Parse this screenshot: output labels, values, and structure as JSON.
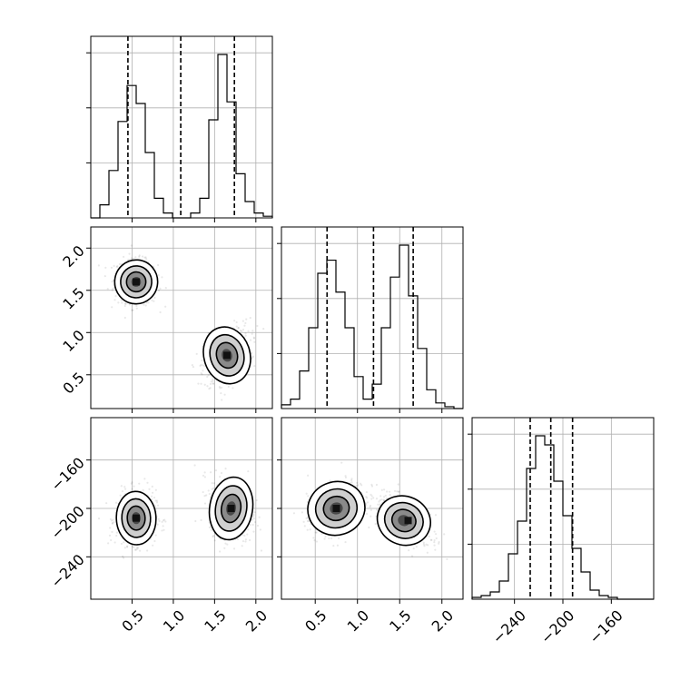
{
  "chart_data": {
    "type": "corner",
    "parameters": [
      "",
      "",
      ""
    ],
    "grid": true,
    "colors": {
      "line": "#000000",
      "grid": "#b0b0b0",
      "background": "#ffffff"
    },
    "ranges": {
      "p0": [
        0.0,
        2.2
      ],
      "p1": [
        0.1,
        2.25
      ],
      "p2": [
        -275,
        -125
      ]
    },
    "ticks": {
      "p0": [
        0.5,
        1.0,
        1.5,
        2.0
      ],
      "p1": [
        0.5,
        1.0,
        1.5,
        2.0
      ],
      "p2": [
        -240,
        -200,
        -160
      ]
    },
    "tick_labels": {
      "p0": [
        "0.5",
        "1.0",
        "1.5",
        "2.0"
      ],
      "p1": [
        "0.5",
        "1.0",
        "1.5",
        "2.0"
      ],
      "p2": [
        "−240",
        "−200",
        "−160"
      ]
    },
    "histograms": [
      {
        "param": "p0",
        "bin_edges": [
          0.0,
          0.11,
          0.22,
          0.33,
          0.44,
          0.55,
          0.66,
          0.77,
          0.88,
          0.99,
          1.1,
          1.21,
          1.32,
          1.43,
          1.54,
          1.65,
          1.76,
          1.87,
          1.98,
          2.09,
          2.2
        ],
        "counts": [
          0,
          0.08,
          0.29,
          0.59,
          0.81,
          0.7,
          0.4,
          0.12,
          0.03,
          0.0,
          0.0,
          0.03,
          0.12,
          0.6,
          1.0,
          0.71,
          0.27,
          0.1,
          0.03,
          0.01
        ],
        "quantiles": [
          0.45,
          1.09,
          1.74
        ]
      },
      {
        "param": "p1",
        "bin_edges": [
          0.1,
          0.2075,
          0.315,
          0.4225,
          0.53,
          0.6375,
          0.745,
          0.8525,
          0.96,
          1.0675,
          1.175,
          1.2825,
          1.39,
          1.4975,
          1.605,
          1.7125,
          1.82,
          1.9275,
          2.035,
          2.1425,
          2.25
        ],
        "counts": [
          0.02,
          0.05,
          0.2,
          0.43,
          0.72,
          0.79,
          0.62,
          0.43,
          0.17,
          0.05,
          0.13,
          0.43,
          0.7,
          0.87,
          0.6,
          0.32,
          0.1,
          0.03,
          0.01,
          0.0
        ],
        "quantiles": [
          0.64,
          1.19,
          1.66
        ]
      },
      {
        "param": "p2",
        "bin_edges": [
          -275,
          -267.5,
          -260,
          -252.5,
          -245,
          -237.5,
          -230,
          -222.5,
          -215,
          -207.5,
          -200,
          -192.5,
          -185,
          -177.5,
          -170,
          -162.5,
          -155,
          -147.5,
          -140,
          -132.5,
          -125
        ],
        "counts": [
          0.01,
          0.02,
          0.04,
          0.1,
          0.25,
          0.43,
          0.72,
          0.9,
          0.85,
          0.65,
          0.46,
          0.28,
          0.15,
          0.05,
          0.02,
          0.01,
          0.0,
          0.0,
          0.0,
          0.0
        ],
        "quantiles": [
          -227,
          -210,
          -192
        ]
      }
    ],
    "scatter_2d": [
      {
        "x": "p0",
        "y": "p1",
        "clusters": [
          {
            "center": [
              0.55,
              1.6
            ],
            "sd": [
              0.13,
              0.13
            ],
            "rho": -0.1,
            "n": 520
          },
          {
            "center": [
              1.65,
              0.73
            ],
            "sd": [
              0.14,
              0.17
            ],
            "rho": 0.35,
            "n": 520
          }
        ],
        "mode_points": [
          [
            0.55,
            1.6
          ],
          [
            1.65,
            0.73
          ]
        ]
      },
      {
        "x": "p0",
        "y": "p2",
        "clusters": [
          {
            "center": [
              0.55,
              -208
            ],
            "sd": [
              0.12,
              11
            ],
            "rho": 0.05,
            "n": 520
          },
          {
            "center": [
              1.7,
              -200
            ],
            "sd": [
              0.13,
              13
            ],
            "rho": -0.2,
            "n": 520
          }
        ],
        "mode_points": [
          [
            0.55,
            -208
          ],
          [
            1.7,
            -200
          ]
        ]
      },
      {
        "x": "p1",
        "y": "p2",
        "clusters": [
          {
            "center": [
              0.75,
              -200
            ],
            "sd": [
              0.17,
              11
            ],
            "rho": 0.4,
            "n": 520
          },
          {
            "center": [
              1.55,
              -210
            ],
            "sd": [
              0.16,
              10
            ],
            "rho": -0.55,
            "n": 520
          }
        ],
        "mode_points": [
          [
            0.75,
            -200
          ],
          [
            1.6,
            -210
          ]
        ]
      }
    ]
  }
}
